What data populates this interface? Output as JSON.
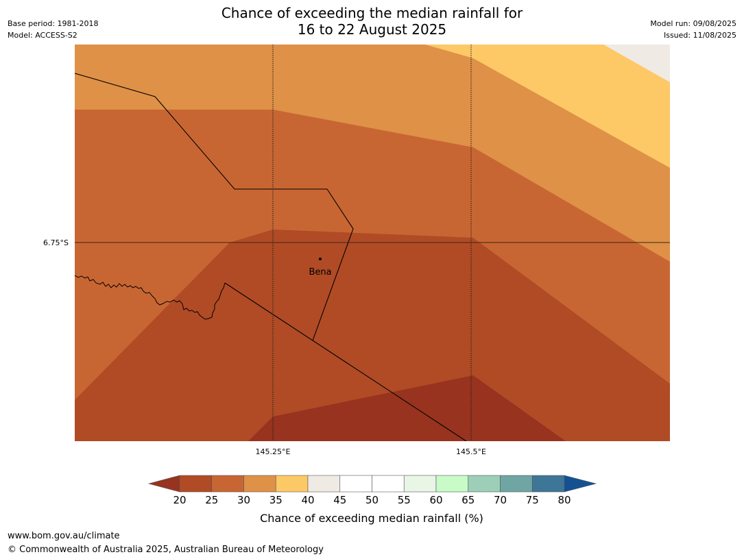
{
  "header": {
    "title_line1": "Chance of exceeding the median rainfall for",
    "title_line2": "16 to 22 August 2025",
    "base_period": "Base period: 1981-2018",
    "model": "Model: ACCESS-S2",
    "model_run": "Model run: 09/08/2025",
    "issued": "Issued: 11/08/2025"
  },
  "map": {
    "place_label": "Bena",
    "lat_label": "6.75°S",
    "lon_labels": [
      "145.25°E",
      "145.5°E"
    ],
    "category_colors": {
      "20-25": "#b04b25",
      "25-30": "#c86633",
      "30-35": "#de9147",
      "35-40": "#fdc866",
      "40-45": "#f0eae5",
      "below-20": "#97331f"
    }
  },
  "legend": {
    "title": "Chance of exceeding median rainfall (%)",
    "ticks": [
      "20",
      "25",
      "30",
      "35",
      "40",
      "45",
      "50",
      "55",
      "60",
      "65",
      "70",
      "75",
      "80"
    ],
    "colors": [
      "#b04b25",
      "#c86633",
      "#de9147",
      "#fdc866",
      "#f0eae5",
      "#ffffff",
      "#ffffff",
      "#e9f6e6",
      "#c8fbc8",
      "#9dcfb8",
      "#6fa6a4",
      "#3e7698"
    ],
    "under_color": "#97331f",
    "over_color": "#135193"
  },
  "footer": {
    "url": "www.bom.gov.au/climate",
    "copyright": "© Commonwealth of Australia 2025, Australian Bureau of Meteorology"
  }
}
